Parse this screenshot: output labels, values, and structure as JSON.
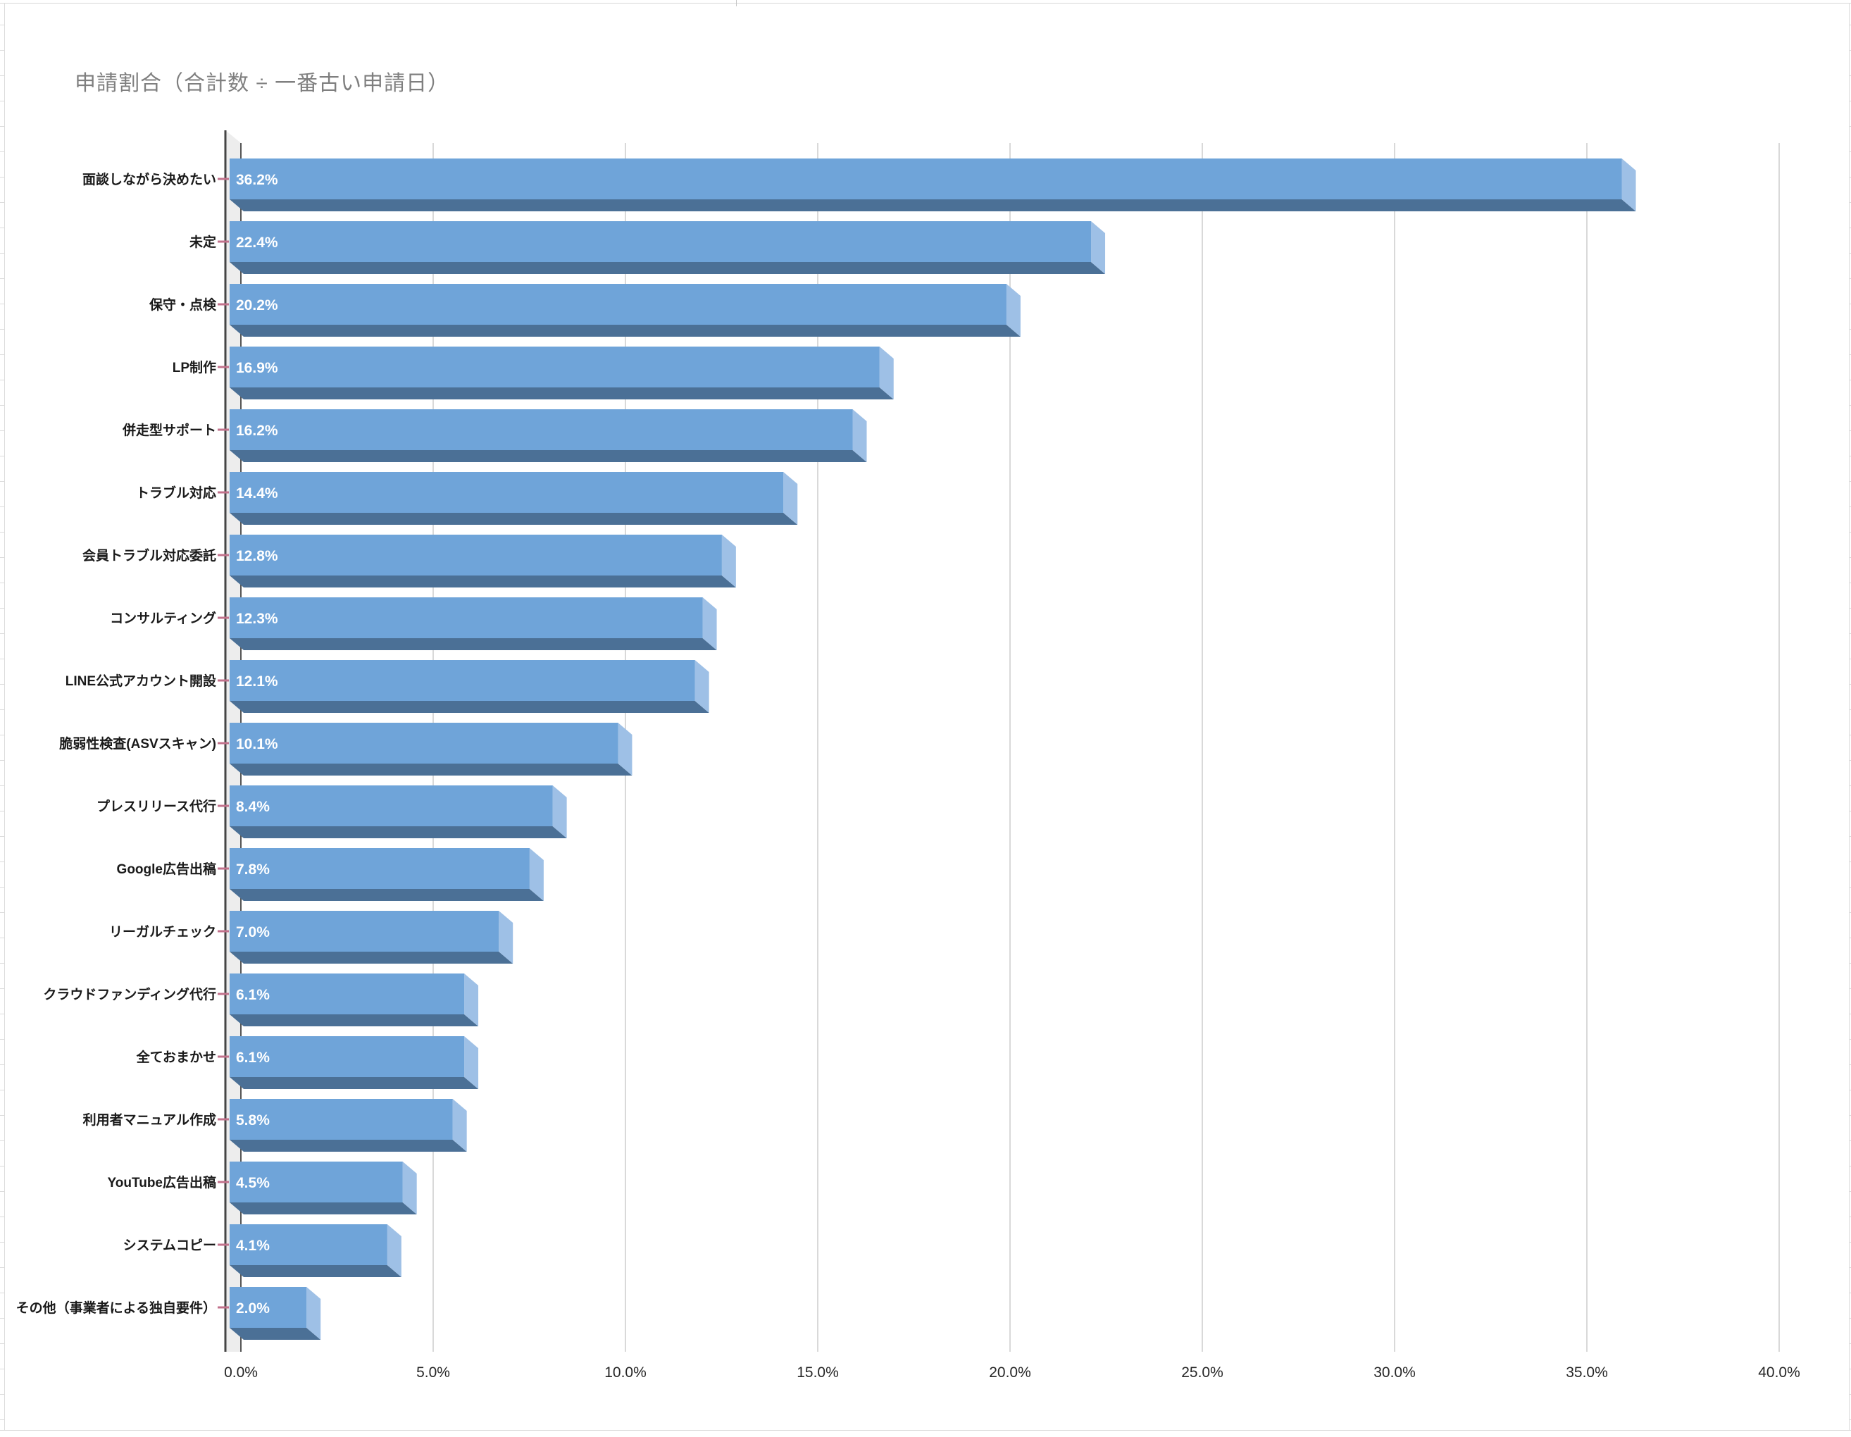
{
  "page": {
    "title": "申請割合（合計数 ÷ 一番古い申請日）"
  },
  "chart_data": {
    "type": "bar",
    "orientation": "horizontal",
    "title": "申請割合（合計数 ÷ 一番古い申請日）",
    "categories": [
      "面談しながら決めたい",
      "未定",
      "保守・点検",
      "LP制作",
      "併走型サポート",
      "トラブル対応",
      "会員トラブル対応委託",
      "コンサルティング",
      "LINE公式アカウント開設",
      "脆弱性検査(ASVスキャン)",
      "プレスリリース代行",
      "Google広告出稿",
      "リーガルチェック",
      "クラウドファンディング代行",
      "全ておまかせ",
      "利用者マニュアル作成",
      "YouTube広告出稿",
      "システムコピー",
      "その他（事業者による独自要件）"
    ],
    "values": [
      36.2,
      22.4,
      20.2,
      16.9,
      16.2,
      14.4,
      12.8,
      12.3,
      12.1,
      10.1,
      8.4,
      7.8,
      7.0,
      6.1,
      6.1,
      5.8,
      4.5,
      4.1,
      2.0
    ],
    "value_labels": [
      "36.2%",
      "22.4%",
      "20.2%",
      "16.9%",
      "16.2%",
      "14.4%",
      "12.8%",
      "12.3%",
      "12.1%",
      "10.1%",
      "8.4%",
      "7.8%",
      "7.0%",
      "6.1%",
      "6.1%",
      "5.8%",
      "4.5%",
      "4.1%",
      "2.0%"
    ],
    "x_ticks": [
      "0.0%",
      "5.0%",
      "10.0%",
      "15.0%",
      "20.0%",
      "25.0%",
      "30.0%",
      "35.0%",
      "40.0%"
    ],
    "xlim": [
      0,
      40
    ],
    "grid": true,
    "legend": "none",
    "style": "3d",
    "colors": {
      "bar_face": "#6FA4D9",
      "bar_side": "#9EC0E6",
      "bar_bottom": "#4B7096",
      "wall": "#EDEDED",
      "axis_line": "#454545",
      "back_line": "#555555",
      "gridline": "#D9D9D9",
      "leader_tick": "#C2728C",
      "title_text": "#7F7F7F",
      "category_text": "#1A1A1A",
      "value_text": "#FFFFFF",
      "tick_text": "#262626"
    }
  }
}
